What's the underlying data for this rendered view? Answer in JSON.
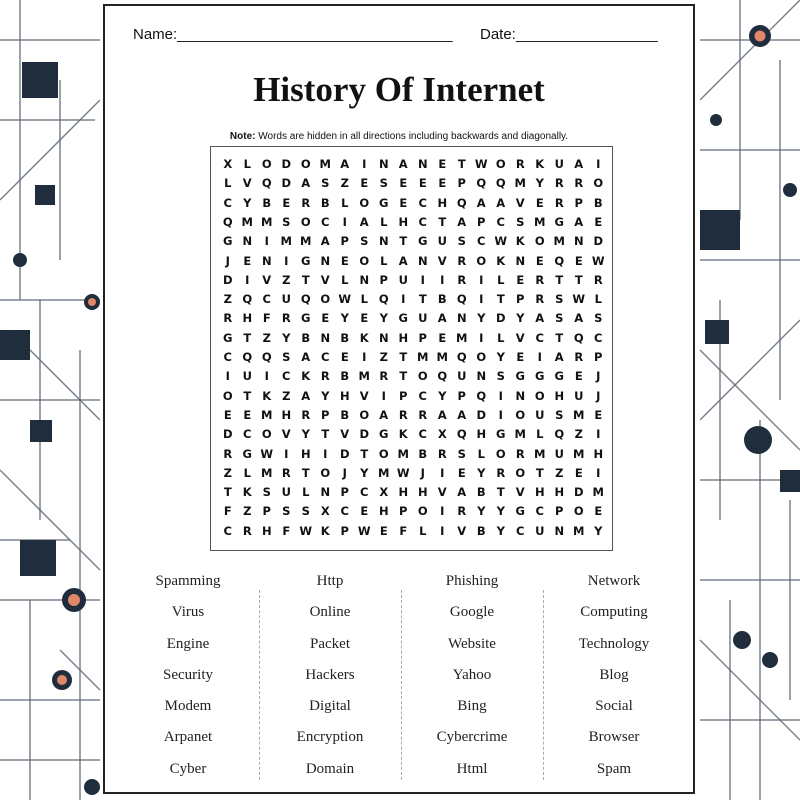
{
  "header": {
    "name_label": "Name:_________________________________",
    "date_label": "Date:_________________"
  },
  "title": "History Of Internet",
  "note": {
    "label": "Note:",
    "text": " Words are hidden in all directions including backwards and diagonally."
  },
  "grid": [
    "XLODOMAINANETWORKUAI",
    "LVQDASZESEEEPQQMYRRO",
    "CYBERBLOGECHQAAVERPB",
    "QMMSOCIALHCTAPCSMGAE",
    "GNIMMAPSNTGUSCWKOMND",
    "JENIGNEOLANVROKNEQEW",
    "DIVZTVLNPUIIRILERTTR",
    "ZQCUQOWLQITBQITPRSWL",
    "RHFRGEYEYGUANYDYASAS",
    "GTZYBNBKNHPEMILVCTQC",
    "CQQSACEIZTMMQOYEIARP",
    "IUICKRBMRTOQUNSGGGEJ",
    "OTKZAYHVIPCYPQINOHUJ",
    "EEMHRPBOARRAADIOUSME",
    "DCOVYTVDGKCXQHGMLQZI",
    "RGWIHIDTOMBRSLORMUMH",
    "ZLMRTOJYMWJIEYROTZEI",
    "TKSULNPCXHHVABTVHHDM",
    "FZPSSXCEHPOIRYYGCPOE",
    "CRHFWKPWEFLIVBYCUNMY"
  ],
  "word_columns": [
    [
      "Spamming",
      "Virus",
      "Engine",
      "Security",
      "Modem",
      "Arpanet",
      "Cyber"
    ],
    [
      "Http",
      "Online",
      "Packet",
      "Hackers",
      "Digital",
      "Encryption",
      "Domain"
    ],
    [
      "Phishing",
      "Google",
      "Website",
      "Yahoo",
      "Bing",
      "Cybercrime",
      "Html"
    ],
    [
      "Network",
      "Computing",
      "Technology",
      "Blog",
      "Social",
      "Browser",
      "Spam"
    ]
  ],
  "colors": {
    "dark": "#1f2d3d",
    "accent": "#e0876a",
    "line": "#5a6470"
  }
}
